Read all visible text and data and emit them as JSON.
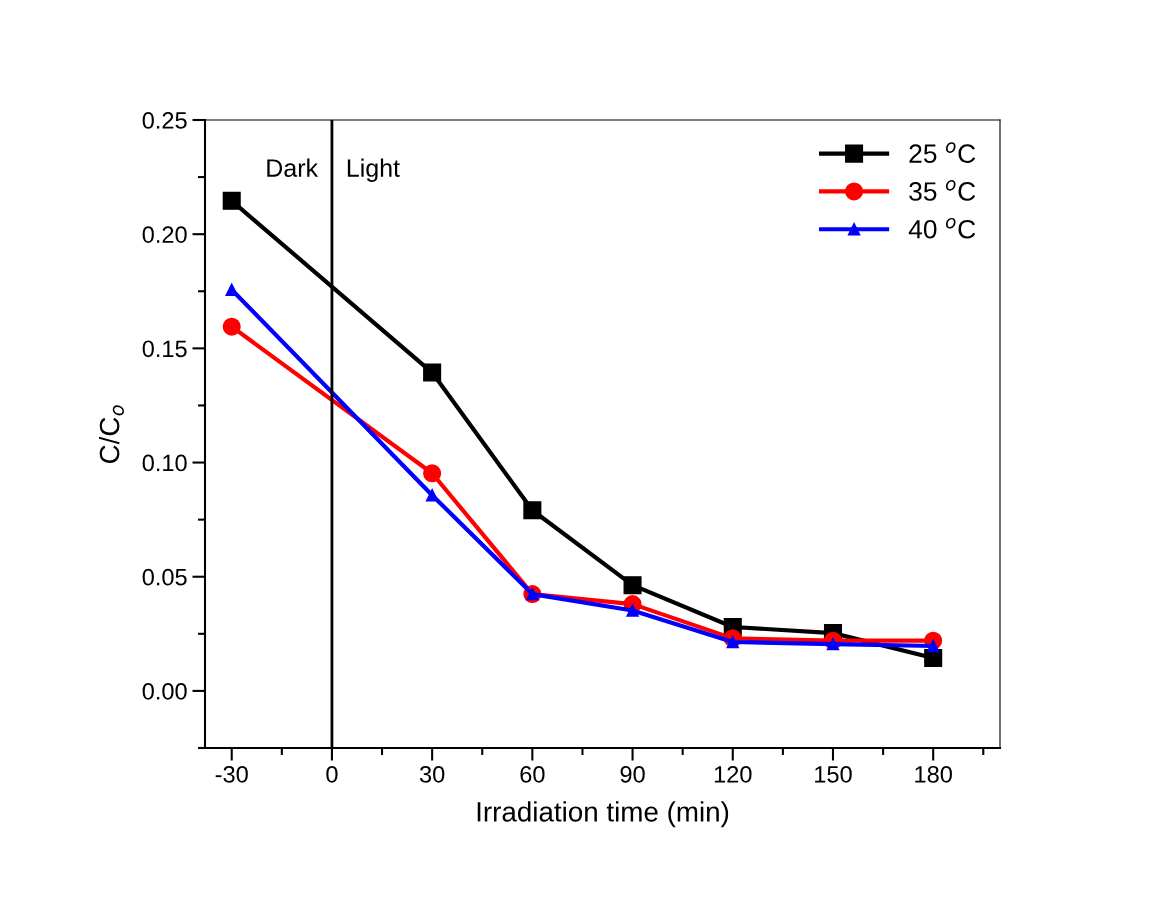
{
  "chart_data": {
    "type": "line",
    "xlabel": "Irradiation time (min)",
    "ylabel": "C/C$_{o}$",
    "x": [
      -30,
      30,
      60,
      90,
      120,
      150,
      180
    ],
    "series": [
      {
        "name": "25 $^{o}$C",
        "color": "#000000",
        "marker": "square",
        "values": [
          0.2146,
          0.1394,
          0.0791,
          0.0463,
          0.028,
          0.0253,
          0.0144
        ]
      },
      {
        "name": "35 $^{o}$C",
        "color": "#ff0000",
        "marker": "circle",
        "values": [
          0.1595,
          0.0953,
          0.0424,
          0.038,
          0.023,
          0.022,
          0.022
        ]
      },
      {
        "name": "40 $^{o}$C",
        "color": "#0000ff",
        "marker": "triangle",
        "values": [
          0.1757,
          0.0857,
          0.0424,
          0.0352,
          0.0214,
          0.0205,
          0.0197
        ]
      }
    ],
    "xlim": [
      -38,
      200
    ],
    "ylim": [
      -0.025,
      0.25
    ],
    "xticks": [
      -30,
      {
        "value": -15,
        "label": null
      },
      0,
      {
        "value": 15,
        "label": null
      },
      30,
      {
        "value": 45,
        "label": null
      },
      60,
      {
        "value": 75,
        "label": null
      },
      90,
      {
        "value": 105,
        "label": null
      },
      120,
      {
        "value": 135,
        "label": null
      },
      150,
      {
        "value": 165,
        "label": null
      },
      180,
      {
        "value": 195,
        "label": null
      }
    ],
    "yticks": [
      {
        "value": -0.025,
        "label": null
      },
      {
        "value": 0,
        "label": "0.00"
      },
      {
        "value": 0.025,
        "label": null
      },
      {
        "value": 0.05,
        "label": "0.05"
      },
      {
        "value": 0.075,
        "label": null
      },
      {
        "value": 0.1,
        "label": "0.10"
      },
      {
        "value": 0.125,
        "label": null
      },
      {
        "value": 0.15,
        "label": "0.15"
      },
      {
        "value": 0.175,
        "label": null
      },
      {
        "value": 0.2,
        "label": "0.20"
      },
      {
        "value": 0.225,
        "label": null
      },
      {
        "value": 0.25,
        "label": "0.25"
      }
    ],
    "ref_lines": [
      {
        "axis": "x",
        "value": 0,
        "color": "#000000",
        "line_style": "solid"
      }
    ],
    "annotations": [
      "Dark",
      "Light"
    ],
    "legend": "top right",
    "grid": false,
    "line_style": "solid"
  }
}
